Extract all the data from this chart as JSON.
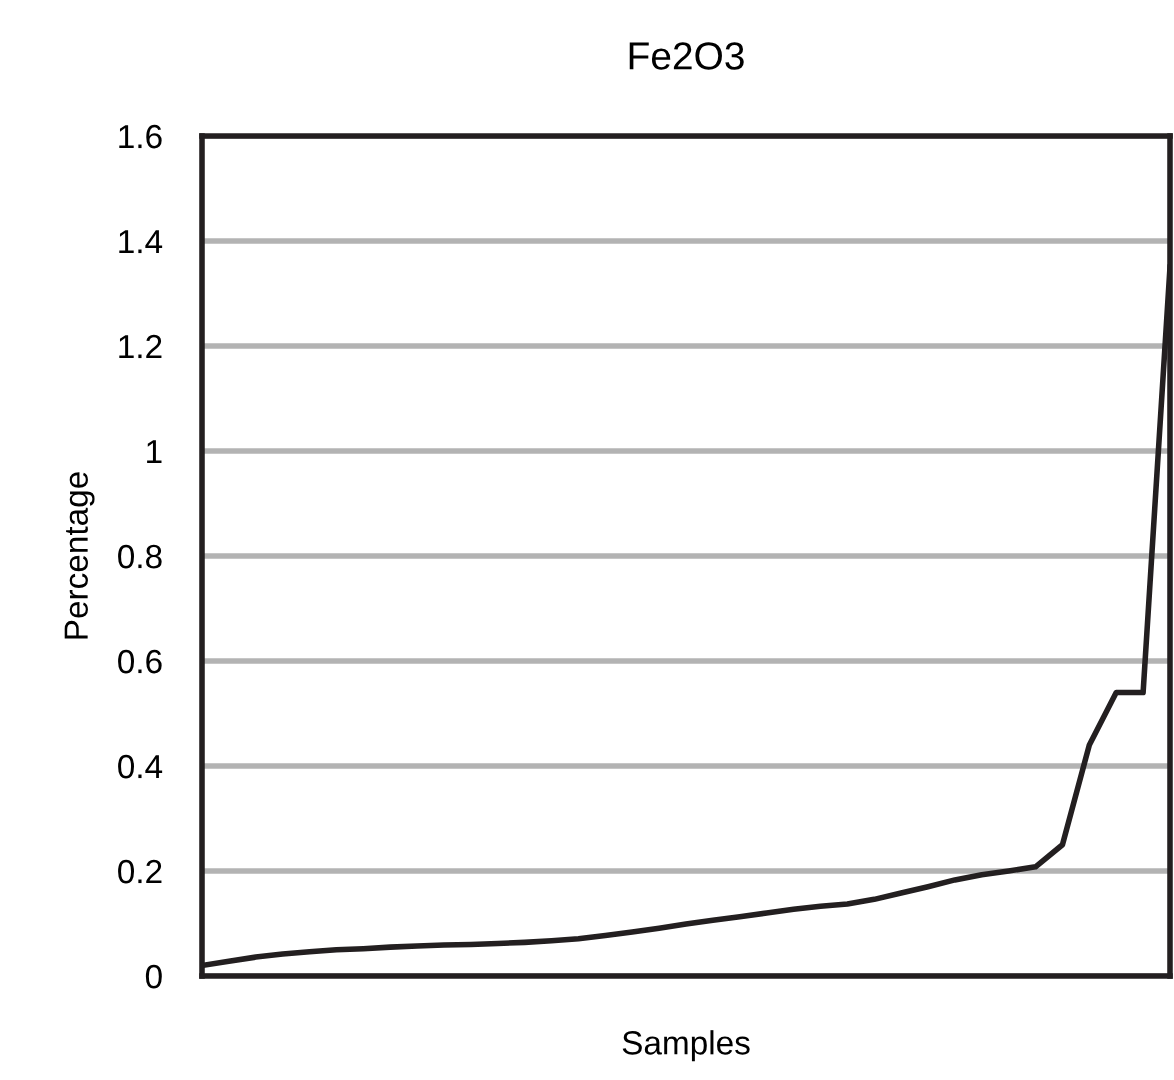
{
  "chart_data": {
    "type": "line",
    "title": "Fe2O3",
    "xlabel": "Samples",
    "ylabel": "Percentage",
    "categories": [
      null,
      null,
      null,
      null,
      null,
      null,
      null,
      null,
      null,
      null,
      null,
      null,
      null,
      null,
      null,
      null,
      null,
      null,
      null,
      null,
      null,
      null,
      null,
      null,
      null,
      null,
      null,
      null,
      null,
      null,
      null,
      null,
      null,
      null,
      null,
      null,
      null
    ],
    "series": [
      {
        "color": "#231f20",
        "values": [
          0.02,
          0.028,
          0.036,
          0.042,
          0.046,
          0.05,
          0.052,
          0.055,
          0.057,
          0.059,
          0.06,
          0.062,
          0.064,
          0.067,
          0.071,
          0.077,
          0.084,
          0.091,
          0.099,
          0.106,
          0.113,
          0.12,
          0.127,
          0.133,
          0.137,
          0.146,
          0.158,
          0.17,
          0.183,
          0.193,
          0.2,
          0.208,
          0.25,
          0.44,
          0.54,
          0.54,
          1.35
        ]
      }
    ],
    "ylim": [
      0,
      1.6
    ],
    "yticks": [
      0,
      0.2,
      0.4,
      0.6,
      0.8,
      1,
      1.2,
      1.4,
      1.6
    ],
    "grid": "y",
    "legend": false,
    "marker": "none",
    "line_style": "solid"
  }
}
